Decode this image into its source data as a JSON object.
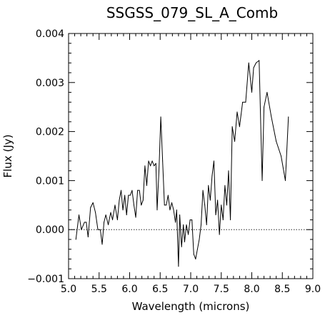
{
  "chart_data": {
    "type": "line",
    "title": "SSGSS_079_SL_A_Comb",
    "xlabel": "Wavelength (microns)",
    "ylabel": "Flux (Jy)",
    "xlim": [
      5.0,
      9.0
    ],
    "ylim": [
      -0.001,
      0.004
    ],
    "xticks": [
      "5.0",
      "5.5",
      "6.0",
      "6.5",
      "7.0",
      "7.5",
      "8.0",
      "8.5",
      "9.0"
    ],
    "yticks": [
      "−0.001",
      "0.000",
      "0.001",
      "0.002",
      "0.003",
      "0.004"
    ],
    "grid": false,
    "legend": "none",
    "zero_line": "dotted",
    "series": [
      {
        "x": [
          5.12,
          5.17,
          5.21,
          5.26,
          5.29,
          5.32,
          5.36,
          5.4,
          5.44,
          5.48,
          5.52,
          5.55,
          5.58,
          5.61,
          5.65,
          5.69,
          5.72,
          5.76,
          5.8,
          5.83,
          5.86,
          5.89,
          5.92,
          5.95,
          5.98,
          6.01,
          6.04,
          6.07,
          6.1,
          6.13,
          6.16,
          6.19,
          6.22,
          6.25,
          6.28,
          6.31,
          6.34,
          6.37,
          6.4,
          6.43,
          6.45,
          6.48,
          6.51,
          6.54,
          6.57,
          6.6,
          6.63,
          6.66,
          6.69,
          6.72,
          6.75,
          6.77,
          6.8,
          6.82,
          6.85,
          6.88,
          6.9,
          6.93,
          6.96,
          6.99,
          7.02,
          7.05,
          7.08,
          7.11,
          7.14,
          7.17,
          7.2,
          7.23,
          7.26,
          7.29,
          7.32,
          7.35,
          7.38,
          7.41,
          7.44,
          7.47,
          7.5,
          7.53,
          7.56,
          7.59,
          7.62,
          7.65,
          7.68,
          7.72,
          7.76,
          7.8,
          7.85,
          7.9,
          7.95,
          8.0,
          8.03,
          8.07,
          8.12,
          8.17,
          8.2,
          8.25,
          8.32,
          8.4,
          8.48,
          8.55,
          8.6
        ],
        "y": [
          -0.0002,
          0.0003,
          0.0,
          0.00015,
          0.00015,
          -0.00015,
          0.00045,
          0.00055,
          0.00035,
          0.0,
          0.0,
          -0.0003,
          0.00015,
          0.0003,
          0.0001,
          0.00035,
          0.0002,
          0.0005,
          0.0002,
          0.0006,
          0.0008,
          0.0004,
          0.0007,
          0.0003,
          0.0007,
          0.0007,
          0.0008,
          0.0005,
          0.00025,
          0.0008,
          0.0008,
          0.0005,
          0.0006,
          0.0013,
          0.0009,
          0.0014,
          0.0013,
          0.0014,
          0.0013,
          0.00135,
          0.0004,
          0.0012,
          0.0023,
          0.0014,
          0.0005,
          0.0005,
          0.0007,
          0.0004,
          0.00055,
          0.0004,
          0.00015,
          0.0004,
          -0.00075,
          0.0003,
          -0.00035,
          0.0001,
          -0.00025,
          0.0001,
          -0.0001,
          0.0002,
          0.0002,
          -0.0005,
          -0.0006,
          -0.0004,
          -0.0002,
          0.0001,
          0.0008,
          0.0005,
          0.0001,
          0.0009,
          0.0006,
          0.0011,
          0.0014,
          0.0003,
          0.0006,
          -0.0001,
          0.0005,
          0.0002,
          0.0009,
          0.0005,
          0.0012,
          0.0002,
          0.0021,
          0.0018,
          0.0024,
          0.0021,
          0.0026,
          0.0026,
          0.0034,
          0.0028,
          0.0033,
          0.0034,
          0.00345,
          0.001,
          0.0025,
          0.0028,
          0.0023,
          0.0018,
          0.0015,
          0.001,
          0.0023
        ]
      }
    ]
  }
}
